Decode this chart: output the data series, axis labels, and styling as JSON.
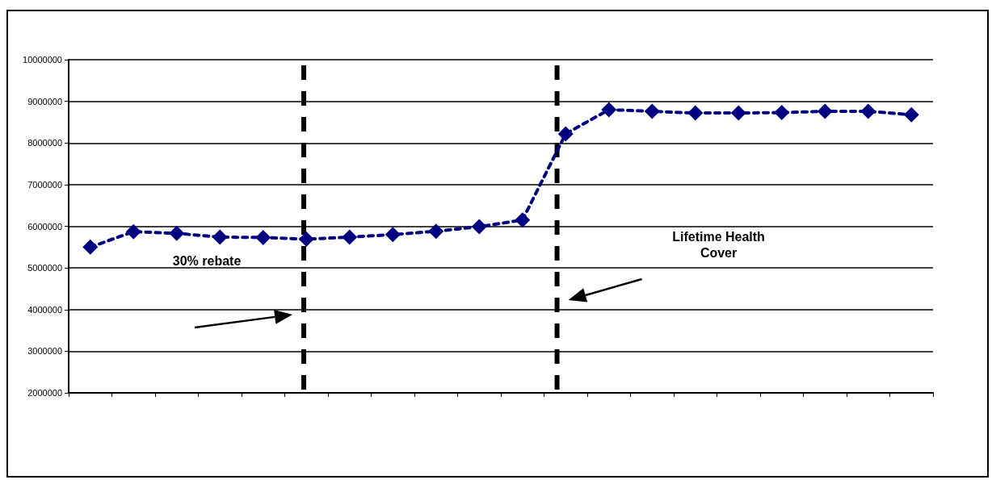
{
  "chart_data": {
    "type": "line",
    "categories": [
      null,
      null,
      null,
      null,
      null,
      null,
      null,
      null,
      null,
      null,
      null,
      null,
      null,
      null,
      null,
      null,
      null,
      null,
      null,
      null
    ],
    "series": [
      {
        "color": "#000080",
        "values": [
          5500000,
          5870000,
          5830000,
          5740000,
          5730000,
          5690000,
          5740000,
          5800000,
          5880000,
          5990000,
          6150000,
          8220000,
          8800000,
          8760000,
          8720000,
          8720000,
          8730000,
          8760000,
          8760000,
          8680000
        ]
      }
    ],
    "ylim": [
      2000000,
      10000000
    ],
    "yticks": [
      2000000,
      3000000,
      4000000,
      5000000,
      6000000,
      7000000,
      8000000,
      9000000,
      10000000
    ],
    "tick_labels": "y",
    "grid": "y",
    "marker": "diamond",
    "line_style": "dashed",
    "annotations": [
      "30% rebate",
      "Lifetime Health\nCover"
    ]
  }
}
